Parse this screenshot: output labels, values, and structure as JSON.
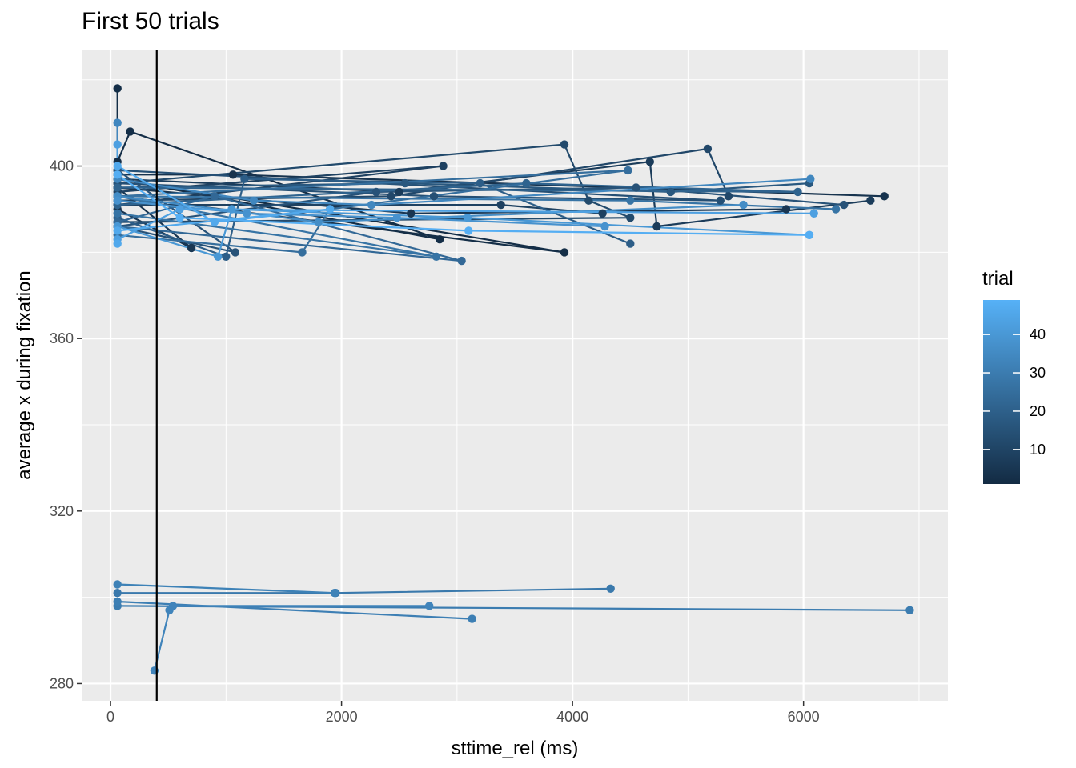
{
  "chart_data": {
    "type": "line",
    "title": "First 50 trials",
    "xlabel": "sttime_rel (ms)",
    "ylabel": "average x during fixation",
    "xlim": [
      -250,
      7250
    ],
    "ylim": [
      276,
      427
    ],
    "xticks": [
      0,
      2000,
      4000,
      6000
    ],
    "yticks": [
      280,
      320,
      360,
      400
    ],
    "xtick_labels": [
      "0",
      "2000",
      "4000",
      "6000"
    ],
    "ytick_labels": [
      "280",
      "320",
      "360",
      "400"
    ],
    "vline_x": 400,
    "grid": true,
    "legend": {
      "title": "trial",
      "position": "right",
      "type": "colorbar",
      "range": [
        1,
        49
      ],
      "breaks": [
        10,
        20,
        30,
        40
      ],
      "labels": [
        "10",
        "20",
        "30",
        "40"
      ],
      "color_low": "#132B43",
      "color_high": "#56B1F7"
    },
    "series": [
      {
        "trial": 2,
        "points": [
          [
            60,
            418
          ],
          [
            60,
            401
          ],
          [
            170,
            408
          ],
          [
            2850,
            383
          ],
          [
            60,
            397
          ],
          [
            3930,
            380
          ],
          [
            60,
            393
          ]
        ]
      },
      {
        "trial": 4,
        "points": [
          [
            60,
            398
          ],
          [
            1060,
            398
          ],
          [
            6700,
            393
          ]
        ]
      },
      {
        "trial": 5,
        "points": [
          [
            60,
            390
          ],
          [
            700,
            381
          ],
          [
            60,
            395
          ],
          [
            2600,
            389
          ],
          [
            5850,
            390
          ]
        ]
      },
      {
        "trial": 7,
        "points": [
          [
            60,
            397
          ],
          [
            2500,
            394
          ],
          [
            4670,
            401
          ],
          [
            4730,
            386
          ],
          [
            6580,
            392
          ]
        ]
      },
      {
        "trial": 9,
        "points": [
          [
            60,
            394
          ],
          [
            2880,
            400
          ],
          [
            60,
            391
          ],
          [
            3380,
            391
          ],
          [
            4260,
            389
          ]
        ]
      },
      {
        "trial": 11,
        "points": [
          [
            60,
            392
          ],
          [
            2430,
            393
          ],
          [
            5170,
            404
          ],
          [
            5350,
            393
          ]
        ]
      },
      {
        "trial": 12,
        "points": [
          [
            60,
            396
          ],
          [
            3930,
            405
          ],
          [
            4140,
            392
          ],
          [
            4500,
            388
          ],
          [
            60,
            387
          ]
        ]
      },
      {
        "trial": 14,
        "points": [
          [
            60,
            396
          ],
          [
            2800,
            393
          ],
          [
            5280,
            392
          ],
          [
            60,
            399
          ]
        ]
      },
      {
        "trial": 15,
        "points": [
          [
            60,
            399
          ],
          [
            1080,
            380
          ],
          [
            60,
            386
          ],
          [
            2300,
            394
          ],
          [
            4550,
            395
          ],
          [
            6350,
            391
          ]
        ]
      },
      {
        "trial": 17,
        "points": [
          [
            60,
            395
          ],
          [
            2550,
            396
          ],
          [
            4850,
            394
          ],
          [
            6050,
            396
          ]
        ]
      },
      {
        "trial": 19,
        "points": [
          [
            60,
            388
          ],
          [
            1000,
            379
          ],
          [
            1160,
            397
          ],
          [
            3200,
            396
          ],
          [
            4500,
            382
          ]
        ]
      },
      {
        "trial": 21,
        "points": [
          [
            60,
            391
          ],
          [
            3600,
            396
          ],
          [
            5950,
            394
          ],
          [
            60,
            395
          ]
        ]
      },
      {
        "trial": 23,
        "points": [
          [
            60,
            387
          ],
          [
            900,
            393
          ],
          [
            3040,
            378
          ],
          [
            60,
            386
          ]
        ]
      },
      {
        "trial": 25,
        "points": [
          [
            60,
            384
          ],
          [
            1660,
            380
          ],
          [
            1900,
            390
          ],
          [
            4480,
            399
          ],
          [
            60,
            393
          ]
        ]
      },
      {
        "trial": 27,
        "points": [
          [
            60,
            389
          ],
          [
            2820,
            379
          ],
          [
            60,
            393
          ],
          [
            4500,
            392
          ],
          [
            6280,
            390
          ]
        ]
      },
      {
        "trial": 29,
        "points": [
          [
            60,
            301
          ],
          [
            1950,
            301
          ],
          [
            4330,
            302
          ]
        ]
      },
      {
        "trial": 30,
        "points": [
          [
            60,
            298
          ],
          [
            6920,
            297
          ]
        ]
      },
      {
        "trial": 31,
        "points": [
          [
            60,
            299
          ],
          [
            3130,
            295
          ]
        ]
      },
      {
        "trial": 32,
        "points": [
          [
            60,
            303
          ],
          [
            1940,
            301
          ]
        ]
      },
      {
        "trial": 33,
        "points": [
          [
            380,
            283
          ],
          [
            510,
            297
          ],
          [
            540,
            298
          ],
          [
            2760,
            298
          ]
        ]
      },
      {
        "trial": 34,
        "points": [
          [
            60,
            410
          ],
          [
            60,
            397
          ],
          [
            1240,
            392
          ],
          [
            2260,
            391
          ],
          [
            6060,
            397
          ]
        ]
      },
      {
        "trial": 36,
        "points": [
          [
            60,
            393
          ],
          [
            1800,
            387
          ],
          [
            5480,
            391
          ]
        ]
      },
      {
        "trial": 38,
        "points": [
          [
            60,
            392
          ],
          [
            1180,
            389
          ],
          [
            2480,
            388
          ],
          [
            4280,
            386
          ]
        ]
      },
      {
        "trial": 40,
        "points": [
          [
            60,
            386
          ],
          [
            930,
            379
          ],
          [
            1050,
            390
          ],
          [
            3090,
            388
          ],
          [
            6050,
            384
          ]
        ]
      },
      {
        "trial": 43,
        "points": [
          [
            60,
            405
          ],
          [
            60,
            383
          ],
          [
            600,
            390
          ],
          [
            6090,
            389
          ]
        ]
      },
      {
        "trial": 46,
        "points": [
          [
            60,
            400
          ],
          [
            900,
            387
          ],
          [
            1900,
            390
          ],
          [
            60,
            385
          ],
          [
            60,
            382
          ]
        ]
      },
      {
        "trial": 48,
        "points": [
          [
            60,
            398
          ],
          [
            600,
            388
          ],
          [
            3100,
            385
          ],
          [
            6050,
            384
          ]
        ]
      }
    ]
  }
}
